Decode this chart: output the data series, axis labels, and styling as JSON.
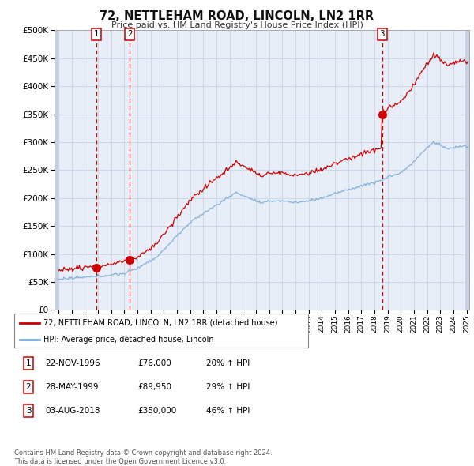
{
  "title": "72, NETTLEHAM ROAD, LINCOLN, LN2 1RR",
  "subtitle": "Price paid vs. HM Land Registry's House Price Index (HPI)",
  "background_color": "#ffffff",
  "plot_bg_color": "#e8eef8",
  "grid_color": "#c8d4e8",
  "sale_labels": [
    "1",
    "2",
    "3"
  ],
  "legend_property": "72, NETTLEHAM ROAD, LINCOLN, LN2 1RR (detached house)",
  "legend_hpi": "HPI: Average price, detached house, Lincoln",
  "table_rows": [
    [
      "1",
      "22-NOV-1996",
      "£76,000",
      "20% ↑ HPI"
    ],
    [
      "2",
      "28-MAY-1999",
      "£89,950",
      "29% ↑ HPI"
    ],
    [
      "3",
      "03-AUG-2018",
      "£350,000",
      "46% ↑ HPI"
    ]
  ],
  "footnote": "Contains HM Land Registry data © Crown copyright and database right 2024.\nThis data is licensed under the Open Government Licence v3.0.",
  "property_color": "#cc0000",
  "hpi_color": "#7aaadd",
  "vline_color": "#cc0000",
  "ylim": [
    0,
    500000
  ],
  "yticks": [
    0,
    50000,
    100000,
    150000,
    200000,
    250000,
    300000,
    350000,
    400000,
    450000,
    500000
  ],
  "sale_times": [
    1996.875,
    1999.4167,
    2018.5833
  ],
  "sale_prices": [
    76000,
    89950,
    350000
  ]
}
